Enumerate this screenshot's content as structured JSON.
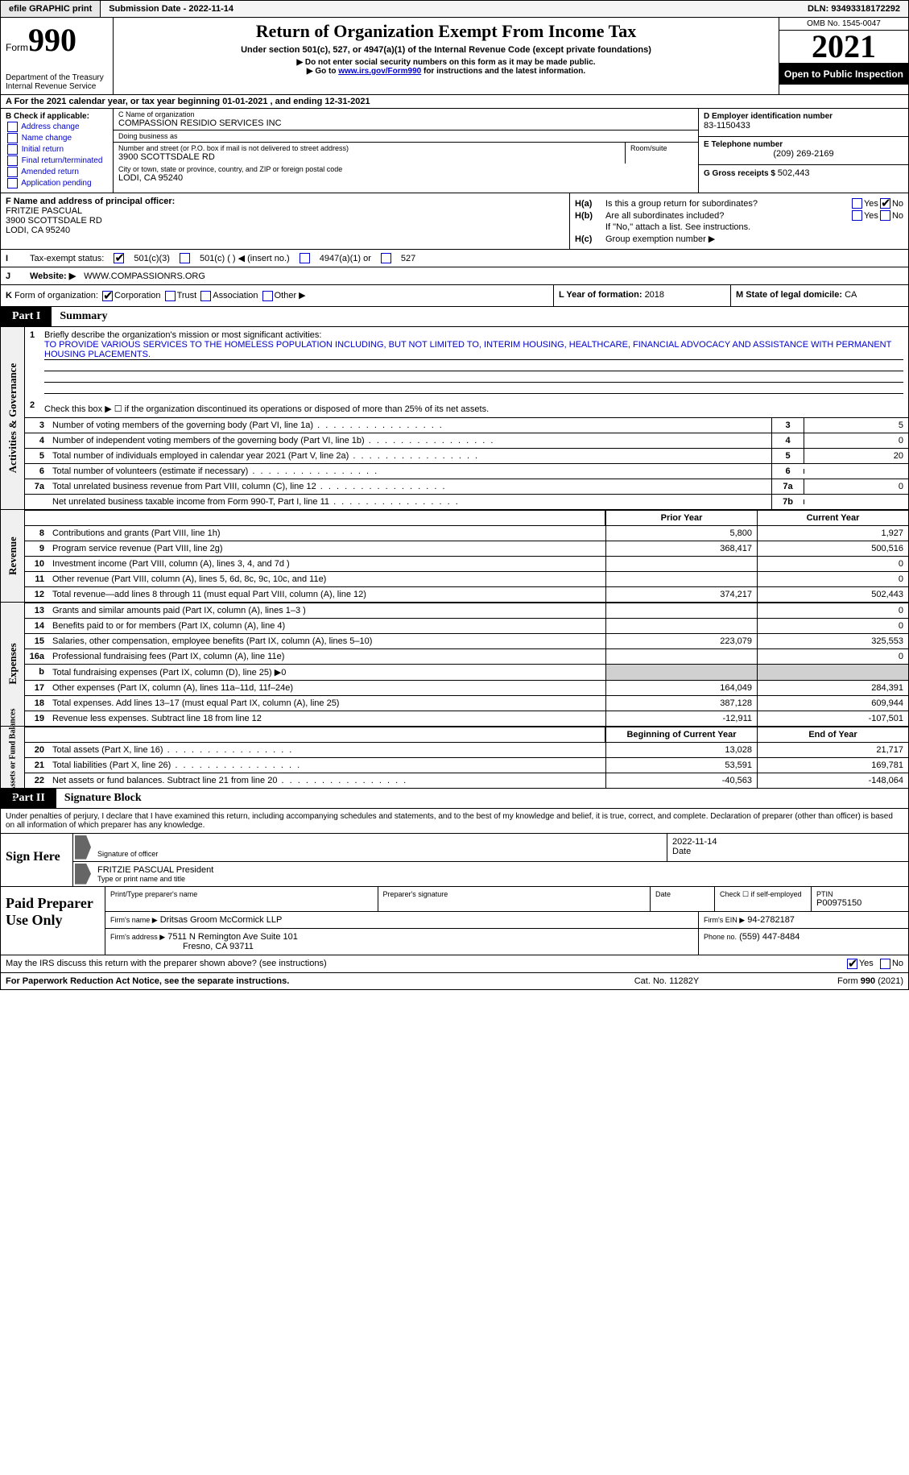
{
  "topbar": {
    "efile": "efile GRAPHIC print",
    "subdate_label": "Submission Date - ",
    "subdate": "2022-11-14",
    "dln_label": "DLN: ",
    "dln": "93493318172292"
  },
  "header": {
    "form_label": "Form",
    "form_num": "990",
    "dept": "Department of the Treasury Internal Revenue Service",
    "title": "Return of Organization Exempt From Income Tax",
    "sub": "Under section 501(c), 527, or 4947(a)(1) of the Internal Revenue Code (except private foundations)",
    "note1": "▶ Do not enter social security numbers on this form as it may be made public.",
    "note2_pre": "▶ Go to ",
    "note2_link": "www.irs.gov/Form990",
    "note2_post": " for instructions and the latest information.",
    "omb": "OMB No. 1545-0047",
    "year": "2021",
    "inspect": "Open to Public Inspection"
  },
  "rowA": {
    "text": "A For the 2021 calendar year, or tax year beginning 01-01-2021    , and ending 12-31-2021"
  },
  "B": {
    "hdr": "B Check if applicable:",
    "opts": [
      "Address change",
      "Name change",
      "Initial return",
      "Final return/terminated",
      "Amended return",
      "Application pending"
    ]
  },
  "C": {
    "name_lbl": "C Name of organization",
    "name": "COMPASSION RESIDIO SERVICES INC",
    "dba_lbl": "Doing business as",
    "dba": "",
    "street_lbl": "Number and street (or P.O. box if mail is not delivered to street address)",
    "street": "3900 SCOTTSDALE RD",
    "room_lbl": "Room/suite",
    "city_lbl": "City or town, state or province, country, and ZIP or foreign postal code",
    "city": "LODI, CA  95240"
  },
  "D": {
    "ein_lbl": "D Employer identification number",
    "ein": "83-1150433",
    "tel_lbl": "E Telephone number",
    "tel": "(209) 269-2169",
    "gross_lbl": "G Gross receipts $ ",
    "gross": "502,443"
  },
  "F": {
    "lbl": "F  Name and address of principal officer:",
    "name": "FRITZIE PASCUAL",
    "street": "3900 SCOTTSDALE RD",
    "city": "LODI, CA  95240"
  },
  "H": {
    "a_lbl": "H(a)",
    "a_txt": "Is this a group return for subordinates?",
    "b_lbl": "H(b)",
    "b_txt": "Are all subordinates included?",
    "b_note": "If \"No,\" attach a list. See instructions.",
    "c_lbl": "H(c)",
    "c_txt": "Group exemption number ▶",
    "yes": "Yes",
    "no": "No"
  },
  "I": {
    "lead": "I",
    "lbl": "Tax-exempt status:",
    "opt1": "501(c)(3)",
    "opt2": "501(c) (   ) ◀ (insert no.)",
    "opt3": "4947(a)(1) or",
    "opt4": "527"
  },
  "J": {
    "lead": "J",
    "lbl": "Website: ▶",
    "val": "WWW.COMPASSIONRS.ORG"
  },
  "K": {
    "lead": "K",
    "lbl": "Form of organization:",
    "opts": [
      "Corporation",
      "Trust",
      "Association",
      "Other ▶"
    ],
    "L_lbl": "L Year of formation: ",
    "L_val": "2018",
    "M_lbl": "M State of legal domicile: ",
    "M_val": "CA"
  },
  "part1": {
    "tag": "Part I",
    "title": "Summary"
  },
  "activities": {
    "side": "Activities & Governance",
    "l1_num": "1",
    "l1_txt": "Briefly describe the organization's mission or most significant activities:",
    "l1_val": "TO PROVIDE VARIOUS SERVICES TO THE HOMELESS POPULATION INCLUDING, BUT NOT LIMITED TO, INTERIM HOUSING, HEALTHCARE, FINANCIAL ADVOCACY AND ASSISTANCE WITH PERMANENT HOUSING PLACEMENTS.",
    "l2_num": "2",
    "l2_txt": "Check this box ▶ ☐ if the organization discontinued its operations or disposed of more than 25% of its net assets.",
    "lines": [
      {
        "n": "3",
        "t": "Number of voting members of the governing body (Part VI, line 1a)",
        "box": "3",
        "v": "5"
      },
      {
        "n": "4",
        "t": "Number of independent voting members of the governing body (Part VI, line 1b)",
        "box": "4",
        "v": "0"
      },
      {
        "n": "5",
        "t": "Total number of individuals employed in calendar year 2021 (Part V, line 2a)",
        "box": "5",
        "v": "20"
      },
      {
        "n": "6",
        "t": "Total number of volunteers (estimate if necessary)",
        "box": "6",
        "v": ""
      },
      {
        "n": "7a",
        "t": "Total unrelated business revenue from Part VIII, column (C), line 12",
        "box": "7a",
        "v": "0"
      },
      {
        "n": "",
        "t": "Net unrelated business taxable income from Form 990-T, Part I, line 11",
        "box": "7b",
        "v": ""
      }
    ]
  },
  "cols": {
    "prior": "Prior Year",
    "current": "Current Year",
    "boy": "Beginning of Current Year",
    "eoy": "End of Year"
  },
  "revenue": {
    "side": "Revenue",
    "lines": [
      {
        "n": "8",
        "t": "Contributions and grants (Part VIII, line 1h)",
        "v1": "5,800",
        "v2": "1,927"
      },
      {
        "n": "9",
        "t": "Program service revenue (Part VIII, line 2g)",
        "v1": "368,417",
        "v2": "500,516"
      },
      {
        "n": "10",
        "t": "Investment income (Part VIII, column (A), lines 3, 4, and 7d )",
        "v1": "",
        "v2": "0"
      },
      {
        "n": "11",
        "t": "Other revenue (Part VIII, column (A), lines 5, 6d, 8c, 9c, 10c, and 11e)",
        "v1": "",
        "v2": "0"
      },
      {
        "n": "12",
        "t": "Total revenue—add lines 8 through 11 (must equal Part VIII, column (A), line 12)",
        "v1": "374,217",
        "v2": "502,443"
      }
    ]
  },
  "expenses": {
    "side": "Expenses",
    "lines": [
      {
        "n": "13",
        "t": "Grants and similar amounts paid (Part IX, column (A), lines 1–3 )",
        "v1": "",
        "v2": "0"
      },
      {
        "n": "14",
        "t": "Benefits paid to or for members (Part IX, column (A), line 4)",
        "v1": "",
        "v2": "0"
      },
      {
        "n": "15",
        "t": "Salaries, other compensation, employee benefits (Part IX, column (A), lines 5–10)",
        "v1": "223,079",
        "v2": "325,553"
      },
      {
        "n": "16a",
        "t": "Professional fundraising fees (Part IX, column (A), line 11e)",
        "v1": "",
        "v2": "0"
      },
      {
        "n": "b",
        "t": "Total fundraising expenses (Part IX, column (D), line 25) ▶0",
        "v1": "shade",
        "v2": "shade"
      },
      {
        "n": "17",
        "t": "Other expenses (Part IX, column (A), lines 11a–11d, 11f–24e)",
        "v1": "164,049",
        "v2": "284,391"
      },
      {
        "n": "18",
        "t": "Total expenses. Add lines 13–17 (must equal Part IX, column (A), line 25)",
        "v1": "387,128",
        "v2": "609,944"
      },
      {
        "n": "19",
        "t": "Revenue less expenses. Subtract line 18 from line 12",
        "v1": "-12,911",
        "v2": "-107,501"
      }
    ]
  },
  "netassets": {
    "side": "Net Assets or Fund Balances",
    "lines": [
      {
        "n": "20",
        "t": "Total assets (Part X, line 16)",
        "v1": "13,028",
        "v2": "21,717"
      },
      {
        "n": "21",
        "t": "Total liabilities (Part X, line 26)",
        "v1": "53,591",
        "v2": "169,781"
      },
      {
        "n": "22",
        "t": "Net assets or fund balances. Subtract line 21 from line 20",
        "v1": "-40,563",
        "v2": "-148,064"
      }
    ]
  },
  "part2": {
    "tag": "Part II",
    "title": "Signature Block"
  },
  "sig": {
    "intro": "Under penalties of perjury, I declare that I have examined this return, including accompanying schedules and statements, and to the best of my knowledge and belief, it is true, correct, and complete. Declaration of preparer (other than officer) is based on all information of which preparer has any knowledge.",
    "sign_here": "Sign Here",
    "sig_officer": "Signature of officer",
    "date_lbl": "Date",
    "date": "2022-11-14",
    "name": "FRITZIE PASCUAL  President",
    "name_lbl": "Type or print name and title"
  },
  "prep": {
    "title": "Paid Preparer Use Only",
    "r1": {
      "c1": "Print/Type preparer's name",
      "c2": "Preparer's signature",
      "c3": "Date",
      "c4_lbl": "Check ☐ if self-employed",
      "c5_lbl": "PTIN",
      "c5": "P00975150"
    },
    "r2": {
      "lbl": "Firm's name    ▶",
      "val": "Dritsas Groom McCormick LLP",
      "ein_lbl": "Firm's EIN ▶",
      "ein": "94-2782187"
    },
    "r3": {
      "lbl": "Firm's address ▶",
      "val": "7511 N Remington Ave Suite 101",
      "ph_lbl": "Phone no.",
      "ph": "(559) 447-8484"
    },
    "r3b": "Fresno, CA  93711"
  },
  "discuss": {
    "txt": "May the IRS discuss this return with the preparer shown above? (see instructions)",
    "yes": "Yes",
    "no": "No"
  },
  "footer": {
    "f1": "For Paperwork Reduction Act Notice, see the separate instructions.",
    "f2": "Cat. No. 11282Y",
    "f3": "Form 990 (2021)"
  }
}
